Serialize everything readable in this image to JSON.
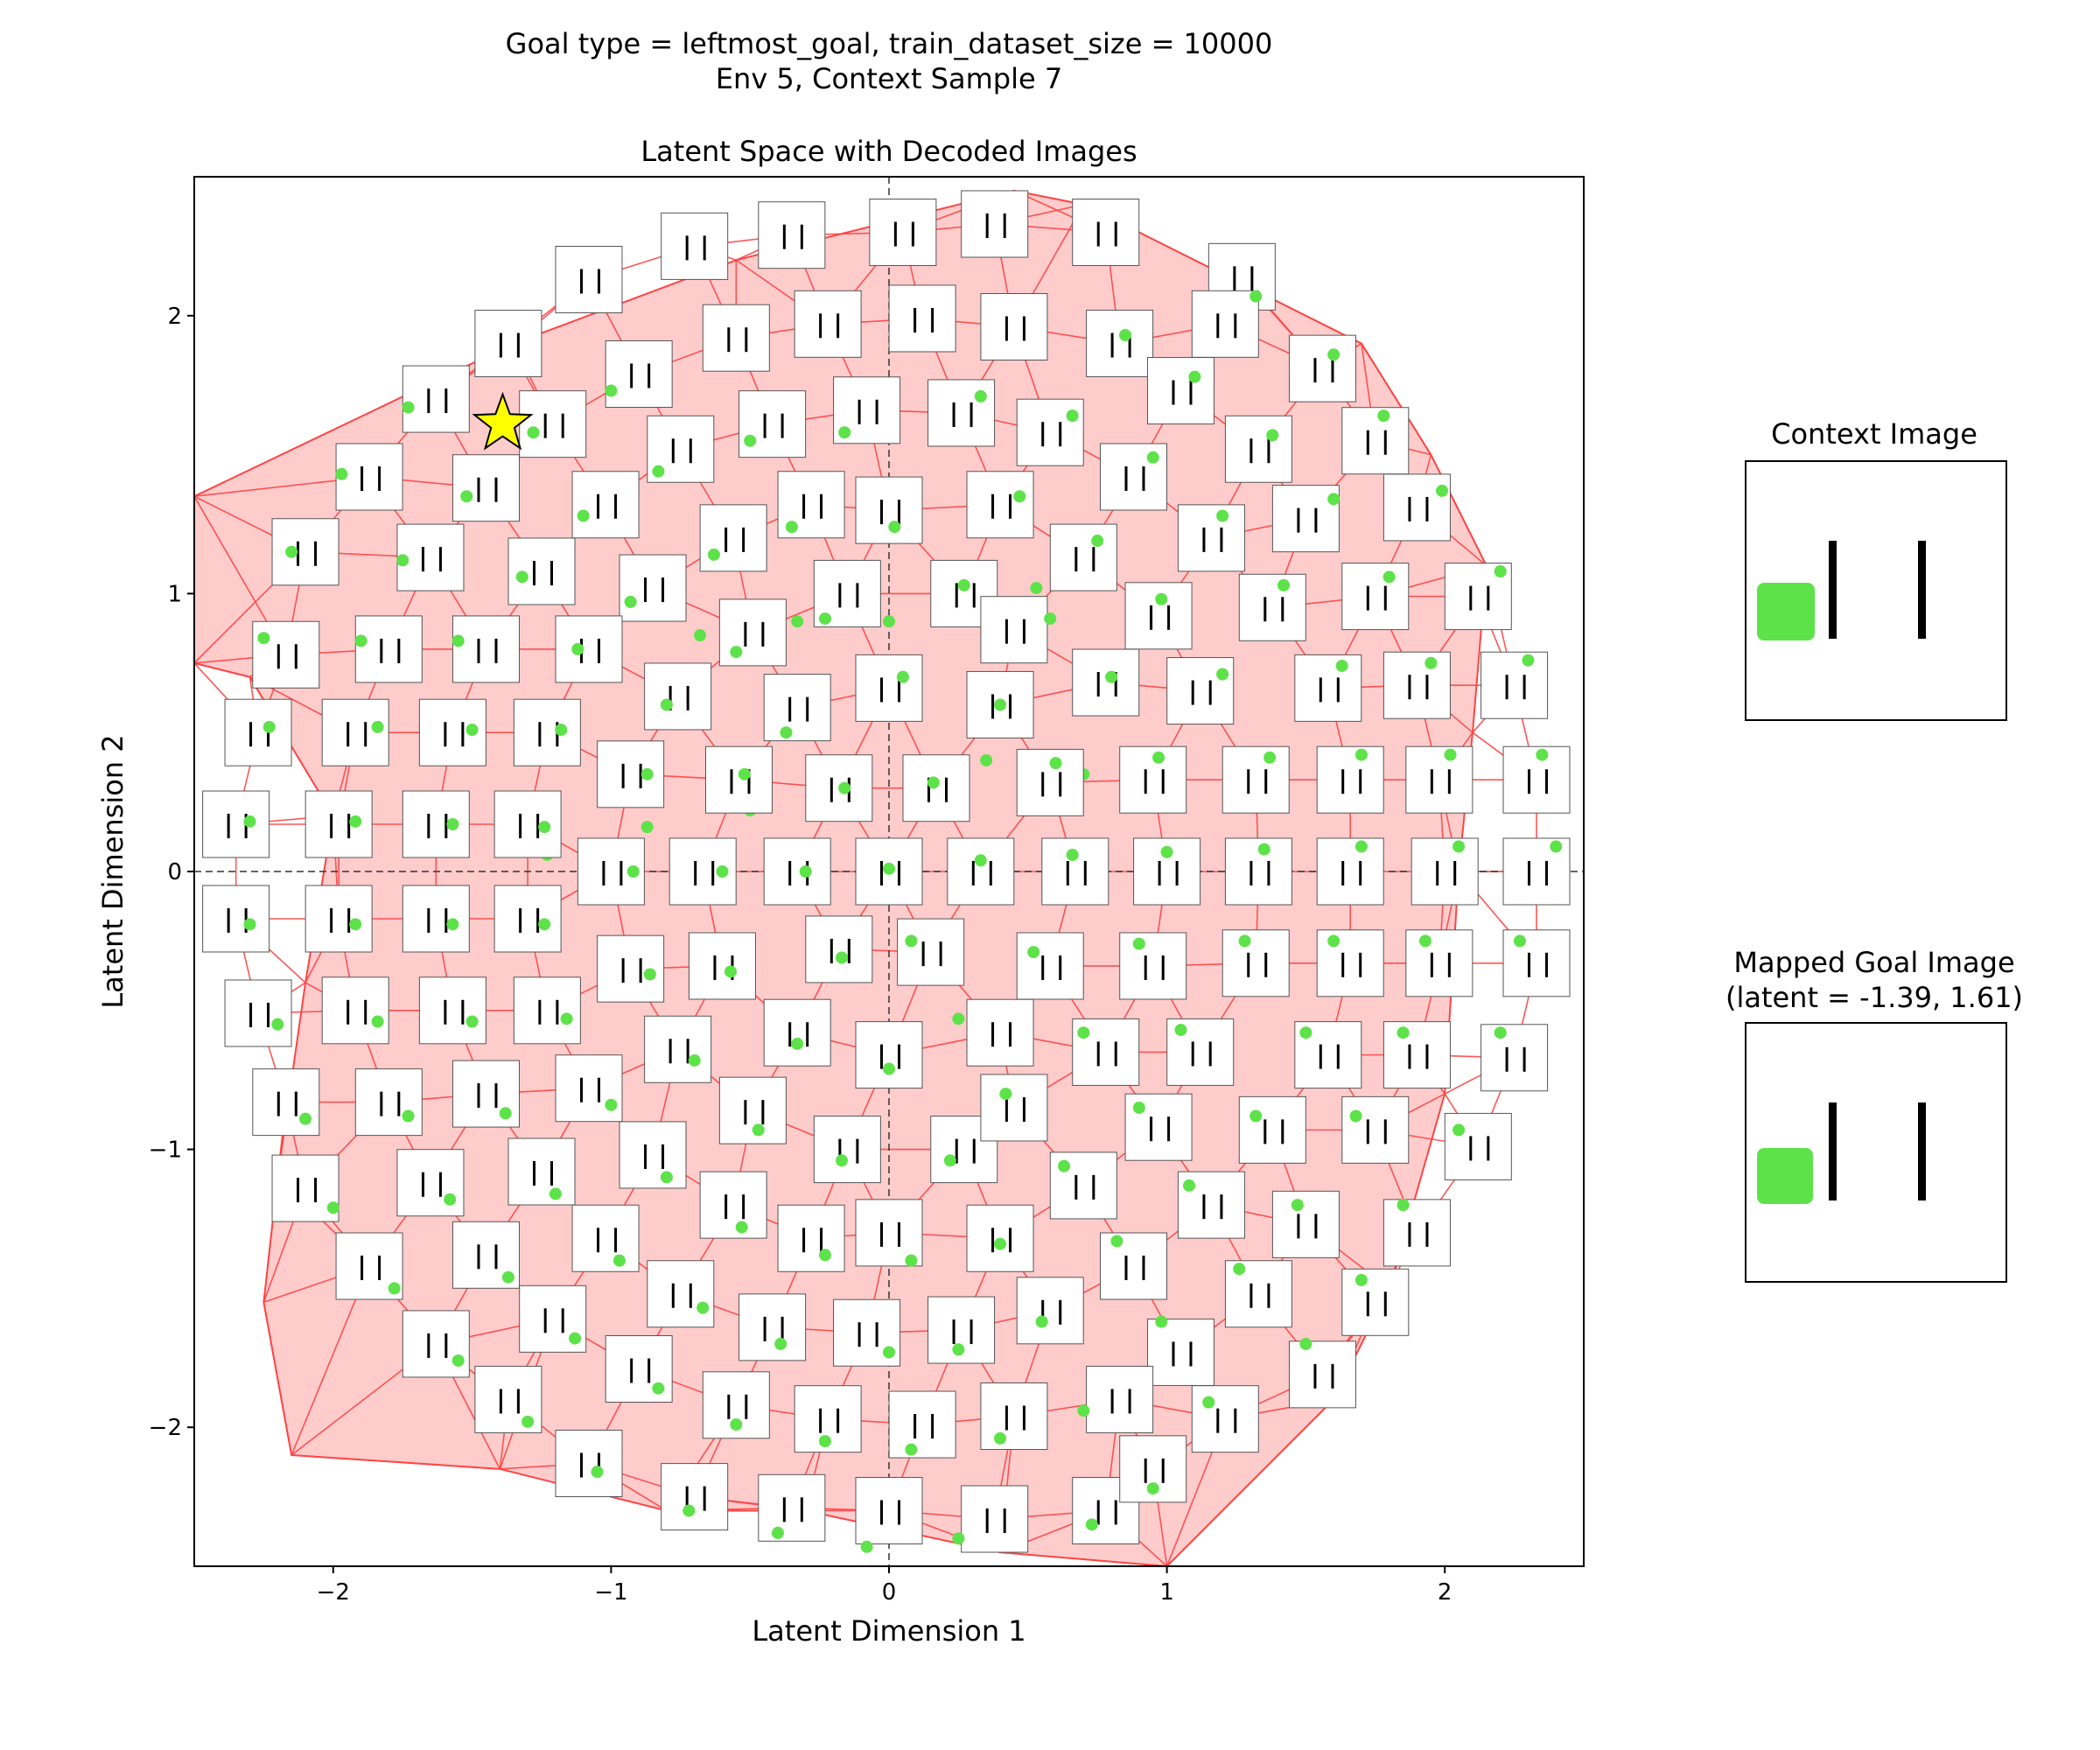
{
  "figure": {
    "suptitle_line1": "Goal type = leftmost_goal, train_dataset_size = 10000",
    "suptitle_line2": "Env 5, Context Sample 7"
  },
  "chart_data": {
    "type": "scatter",
    "title": "Latent Space with Decoded Images",
    "xlabel": "Latent Dimension 1",
    "ylabel": "Latent Dimension 2",
    "xlim": [
      -2.5,
      2.5
    ],
    "ylim": [
      -2.5,
      2.5
    ],
    "xticks": [
      -2,
      -1,
      0,
      1,
      2
    ],
    "yticks": [
      -2,
      -1,
      0,
      1,
      2
    ],
    "xtick_labels": [
      "−2",
      "−1",
      "0",
      "1",
      "2"
    ],
    "ytick_labels": [
      "−2",
      "−1",
      "0",
      "1",
      "2"
    ],
    "grid": false,
    "zero_lines": true,
    "hull_fill_color": "#ffcccc",
    "edge_color": "#ff4444",
    "goal_marker": {
      "x": -1.39,
      "y": 1.61,
      "marker": "star",
      "color": "#ffff00"
    },
    "hull": [
      [
        -2.5,
        1.35
      ],
      [
        -1.35,
        1.9
      ],
      [
        -0.55,
        2.2
      ],
      [
        0.45,
        2.45
      ],
      [
        0.7,
        2.4
      ],
      [
        1.3,
        2.1
      ],
      [
        1.7,
        1.9
      ],
      [
        1.95,
        1.5
      ],
      [
        2.15,
        1.1
      ],
      [
        2.1,
        0.5
      ],
      [
        2.05,
        0.0
      ],
      [
        2.0,
        -0.8
      ],
      [
        1.8,
        -1.5
      ],
      [
        1.6,
        -1.9
      ],
      [
        1.0,
        -2.5
      ],
      [
        0.4,
        -2.45
      ],
      [
        -0.3,
        -2.3
      ],
      [
        -0.8,
        -2.3
      ],
      [
        -1.4,
        -2.15
      ],
      [
        -2.15,
        -2.1
      ],
      [
        -2.25,
        -1.55
      ],
      [
        -2.2,
        -1.1
      ],
      [
        -2.1,
        -0.4
      ],
      [
        -2.0,
        0.2
      ],
      [
        -2.3,
        0.7
      ],
      [
        -2.5,
        0.75
      ]
    ],
    "decoded_images": [
      [
        0.05,
        2.3,
        0.25,
        0.25
      ],
      [
        0.38,
        2.33,
        0.35,
        0.4
      ],
      [
        -0.35,
        2.29,
        -0.5,
        0.22
      ],
      [
        0.78,
        2.3,
        0.7,
        0.35
      ],
      [
        -0.7,
        2.25,
        -0.87,
        0.16
      ],
      [
        -1.08,
        2.13,
        -1.23,
        0.06
      ],
      [
        1.27,
        2.14,
        1.0,
        0.23
      ],
      [
        -1.37,
        1.9,
        -1.45,
        0.88
      ],
      [
        -0.55,
        1.92,
        -0.68,
        0.85
      ],
      [
        -0.22,
        1.97,
        -0.33,
        0.9
      ],
      [
        0.12,
        1.99,
        0.0,
        0.9
      ],
      [
        0.45,
        1.96,
        0.53,
        1.02
      ],
      [
        0.83,
        1.9,
        0.85,
        1.93
      ],
      [
        1.21,
        1.97,
        1.32,
        2.07
      ],
      [
        1.56,
        1.81,
        1.6,
        1.86
      ],
      [
        -0.9,
        1.79,
        -1.0,
        1.73
      ],
      [
        -1.63,
        1.7,
        -1.73,
        1.67
      ],
      [
        -1.21,
        1.61,
        -1.28,
        1.58
      ],
      [
        -0.42,
        1.61,
        -0.5,
        1.55
      ],
      [
        -0.08,
        1.66,
        -0.16,
        1.58
      ],
      [
        0.26,
        1.65,
        0.33,
        1.71
      ],
      [
        0.58,
        1.58,
        0.66,
        1.64
      ],
      [
        1.05,
        1.73,
        1.1,
        1.78
      ],
      [
        1.75,
        1.55,
        1.78,
        1.64
      ],
      [
        -1.87,
        1.42,
        -1.97,
        1.43
      ],
      [
        -0.75,
        1.52,
        -0.83,
        1.44
      ],
      [
        -1.45,
        1.38,
        -1.52,
        1.35
      ],
      [
        -1.02,
        1.32,
        -1.1,
        1.28
      ],
      [
        -0.28,
        1.32,
        -0.35,
        1.24
      ],
      [
        0.4,
        1.32,
        0.47,
        1.35
      ],
      [
        0.88,
        1.42,
        0.95,
        1.49
      ],
      [
        1.33,
        1.52,
        1.38,
        1.57
      ],
      [
        1.5,
        1.27,
        1.6,
        1.34
      ],
      [
        1.9,
        1.31,
        1.99,
        1.37
      ],
      [
        -2.1,
        1.15,
        -2.15,
        1.15
      ],
      [
        -1.65,
        1.13,
        -1.75,
        1.12
      ],
      [
        -1.25,
        1.08,
        -1.32,
        1.06
      ],
      [
        -0.56,
        1.2,
        -0.63,
        1.14
      ],
      [
        0.0,
        1.3,
        0.02,
        1.24
      ],
      [
        0.7,
        1.13,
        0.75,
        1.19
      ],
      [
        1.16,
        1.2,
        1.2,
        1.28
      ],
      [
        -0.85,
        1.02,
        -0.93,
        0.97
      ],
      [
        -0.15,
        1.0,
        -0.23,
        0.91
      ],
      [
        0.27,
        1.0,
        0.27,
        1.03
      ],
      [
        0.45,
        0.87,
        0.58,
        0.91
      ],
      [
        0.97,
        0.92,
        0.98,
        0.98
      ],
      [
        1.38,
        0.95,
        1.42,
        1.03
      ],
      [
        1.75,
        0.99,
        1.8,
        1.06
      ],
      [
        2.12,
        0.99,
        2.2,
        1.08
      ],
      [
        -2.17,
        0.78,
        -2.25,
        0.84
      ],
      [
        -1.8,
        0.8,
        -1.9,
        0.83
      ],
      [
        -1.45,
        0.8,
        -1.55,
        0.83
      ],
      [
        -1.08,
        0.8,
        -1.12,
        0.8
      ],
      [
        -0.49,
        0.86,
        -0.55,
        0.79
      ],
      [
        0.0,
        0.66,
        0.05,
        0.7
      ],
      [
        0.78,
        0.68,
        0.8,
        0.7
      ],
      [
        1.12,
        0.65,
        1.2,
        0.71
      ],
      [
        1.58,
        0.66,
        1.63,
        0.74
      ],
      [
        1.9,
        0.67,
        1.95,
        0.75
      ],
      [
        2.25,
        0.67,
        2.3,
        0.76
      ],
      [
        -2.27,
        0.5,
        -2.23,
        0.52
      ],
      [
        -1.92,
        0.5,
        -1.84,
        0.52
      ],
      [
        -1.57,
        0.5,
        -1.5,
        0.51
      ],
      [
        -1.23,
        0.5,
        -1.18,
        0.51
      ],
      [
        -0.76,
        0.63,
        -0.8,
        0.6
      ],
      [
        -0.33,
        0.59,
        -0.37,
        0.5
      ],
      [
        0.4,
        0.6,
        0.4,
        0.6
      ],
      [
        -0.93,
        0.35,
        -0.87,
        0.35
      ],
      [
        -0.54,
        0.33,
        -0.52,
        0.35
      ],
      [
        -0.18,
        0.3,
        -0.16,
        0.3
      ],
      [
        0.17,
        0.3,
        0.16,
        0.32
      ],
      [
        0.58,
        0.32,
        0.6,
        0.39
      ],
      [
        0.95,
        0.33,
        0.97,
        0.41
      ],
      [
        1.32,
        0.33,
        1.37,
        0.41
      ],
      [
        1.66,
        0.33,
        1.7,
        0.42
      ],
      [
        1.98,
        0.33,
        2.02,
        0.42
      ],
      [
        2.33,
        0.33,
        2.35,
        0.42
      ],
      [
        -2.35,
        0.17,
        -2.3,
        0.18
      ],
      [
        -1.98,
        0.17,
        -1.92,
        0.18
      ],
      [
        -1.63,
        0.17,
        -1.57,
        0.17
      ],
      [
        -1.3,
        0.17,
        -1.24,
        0.16
      ],
      [
        -1.0,
        0.0,
        -0.92,
        0.0
      ],
      [
        -0.67,
        0.0,
        -0.6,
        0.0
      ],
      [
        -0.33,
        0.0,
        -0.3,
        0.0
      ],
      [
        0.0,
        0.0,
        0.0,
        0.01
      ],
      [
        0.33,
        0.0,
        0.33,
        0.04
      ],
      [
        0.67,
        0.0,
        0.66,
        0.06
      ],
      [
        1.0,
        0.0,
        1.0,
        0.07
      ],
      [
        1.33,
        0.0,
        1.35,
        0.08
      ],
      [
        1.66,
        0.0,
        1.7,
        0.09
      ],
      [
        2.0,
        0.0,
        2.05,
        0.09
      ],
      [
        2.33,
        0.0,
        2.4,
        0.09
      ],
      [
        -2.35,
        -0.17,
        -2.3,
        -0.19
      ],
      [
        -1.98,
        -0.17,
        -1.92,
        -0.19
      ],
      [
        -1.63,
        -0.17,
        -1.57,
        -0.19
      ],
      [
        -1.3,
        -0.17,
        -1.24,
        -0.19
      ],
      [
        -0.93,
        -0.35,
        -0.86,
        -0.37
      ],
      [
        -0.6,
        -0.34,
        -0.57,
        -0.36
      ],
      [
        -0.18,
        -0.28,
        -0.17,
        -0.31
      ],
      [
        0.15,
        -0.29,
        0.08,
        -0.25
      ],
      [
        0.58,
        -0.34,
        0.52,
        -0.29
      ],
      [
        0.95,
        -0.34,
        0.9,
        -0.26
      ],
      [
        1.32,
        -0.33,
        1.28,
        -0.25
      ],
      [
        1.66,
        -0.33,
        1.6,
        -0.25
      ],
      [
        1.98,
        -0.33,
        1.93,
        -0.25
      ],
      [
        2.33,
        -0.33,
        2.27,
        -0.25
      ],
      [
        -2.27,
        -0.51,
        -2.2,
        -0.55
      ],
      [
        -1.92,
        -0.5,
        -1.84,
        -0.54
      ],
      [
        -1.57,
        -0.5,
        -1.5,
        -0.54
      ],
      [
        -1.23,
        -0.5,
        -1.16,
        -0.53
      ],
      [
        -0.76,
        -0.64,
        -0.7,
        -0.68
      ],
      [
        -0.33,
        -0.58,
        -0.33,
        -0.62
      ],
      [
        0.0,
        -0.66,
        0.0,
        -0.71
      ],
      [
        0.4,
        -0.58,
        0.25,
        -0.53
      ],
      [
        0.78,
        -0.65,
        0.7,
        -0.58
      ],
      [
        1.12,
        -0.65,
        1.05,
        -0.57
      ],
      [
        1.58,
        -0.66,
        1.5,
        -0.58
      ],
      [
        1.9,
        -0.66,
        1.85,
        -0.58
      ],
      [
        2.25,
        -0.67,
        2.2,
        -0.58
      ],
      [
        -2.17,
        -0.83,
        -2.1,
        -0.89
      ],
      [
        -1.8,
        -0.83,
        -1.73,
        -0.88
      ],
      [
        -1.45,
        -0.8,
        -1.38,
        -0.87
      ],
      [
        -1.08,
        -0.78,
        -1.0,
        -0.84
      ],
      [
        -0.49,
        -0.86,
        -0.47,
        -0.93
      ],
      [
        -0.15,
        -1.0,
        -0.17,
        -1.04
      ],
      [
        0.27,
        -1.0,
        0.22,
        -1.04
      ],
      [
        0.45,
        -0.85,
        0.42,
        -0.8
      ],
      [
        0.97,
        -0.92,
        0.9,
        -0.85
      ],
      [
        1.38,
        -0.93,
        1.32,
        -0.88
      ],
      [
        1.75,
        -0.93,
        1.68,
        -0.88
      ],
      [
        2.12,
        -0.99,
        2.05,
        -0.93
      ],
      [
        -2.1,
        -1.14,
        -2.0,
        -1.21
      ],
      [
        -1.65,
        -1.12,
        -1.58,
        -1.18
      ],
      [
        -1.25,
        -1.08,
        -1.2,
        -1.16
      ],
      [
        -0.85,
        -1.02,
        -0.8,
        -1.1
      ],
      [
        -0.56,
        -1.2,
        -0.53,
        -1.28
      ],
      [
        0.0,
        -1.3,
        0.08,
        -1.4
      ],
      [
        0.7,
        -1.13,
        0.63,
        -1.06
      ],
      [
        1.16,
        -1.2,
        1.08,
        -1.13
      ],
      [
        1.5,
        -1.27,
        1.47,
        -1.2
      ],
      [
        1.9,
        -1.3,
        1.85,
        -1.2
      ],
      [
        -1.87,
        -1.42,
        -1.78,
        -1.5
      ],
      [
        -1.45,
        -1.38,
        -1.37,
        -1.46
      ],
      [
        -1.02,
        -1.32,
        -0.97,
        -1.4
      ],
      [
        -0.75,
        -1.52,
        -0.67,
        -1.57
      ],
      [
        -0.28,
        -1.32,
        -0.23,
        -1.38
      ],
      [
        0.4,
        -1.32,
        0.4,
        -1.34
      ],
      [
        0.88,
        -1.42,
        0.82,
        -1.33
      ],
      [
        1.33,
        -1.52,
        1.26,
        -1.43
      ],
      [
        1.75,
        -1.55,
        1.7,
        -1.47
      ],
      [
        -1.63,
        -1.7,
        -1.55,
        -1.76
      ],
      [
        -1.21,
        -1.61,
        -1.13,
        -1.68
      ],
      [
        -0.42,
        -1.64,
        -0.39,
        -1.7
      ],
      [
        -0.08,
        -1.66,
        0.0,
        -1.73
      ],
      [
        0.26,
        -1.65,
        0.25,
        -1.72
      ],
      [
        0.58,
        -1.58,
        0.55,
        -1.62
      ],
      [
        1.05,
        -1.73,
        0.98,
        -1.62
      ],
      [
        1.56,
        -1.81,
        1.5,
        -1.7
      ],
      [
        -0.9,
        -1.79,
        -0.83,
        -1.86
      ],
      [
        -1.37,
        -1.9,
        -1.3,
        -1.98
      ],
      [
        -0.55,
        -1.92,
        -0.55,
        -1.99
      ],
      [
        -0.22,
        -1.97,
        -0.23,
        -2.05
      ],
      [
        0.12,
        -1.99,
        0.08,
        -2.08
      ],
      [
        0.45,
        -1.96,
        0.4,
        -2.04
      ],
      [
        0.83,
        -1.9,
        0.7,
        -1.94
      ],
      [
        1.21,
        -1.97,
        1.15,
        -1.91
      ],
      [
        -1.08,
        -2.13,
        -1.05,
        -2.16
      ],
      [
        -0.7,
        -2.25,
        -0.72,
        -2.3
      ],
      [
        -0.35,
        -2.29,
        -0.4,
        -2.38
      ],
      [
        0.0,
        -2.3,
        -0.08,
        -2.43
      ],
      [
        0.38,
        -2.33,
        0.25,
        -2.4
      ],
      [
        0.78,
        -2.3,
        0.73,
        -2.35
      ],
      [
        0.95,
        -2.15,
        0.95,
        -2.22
      ]
    ]
  },
  "context_panel": {
    "title": "Context Image"
  },
  "goal_panel": {
    "title_line1": "Mapped Goal Image",
    "title_line2": "(latent = -1.39, 1.61)"
  }
}
